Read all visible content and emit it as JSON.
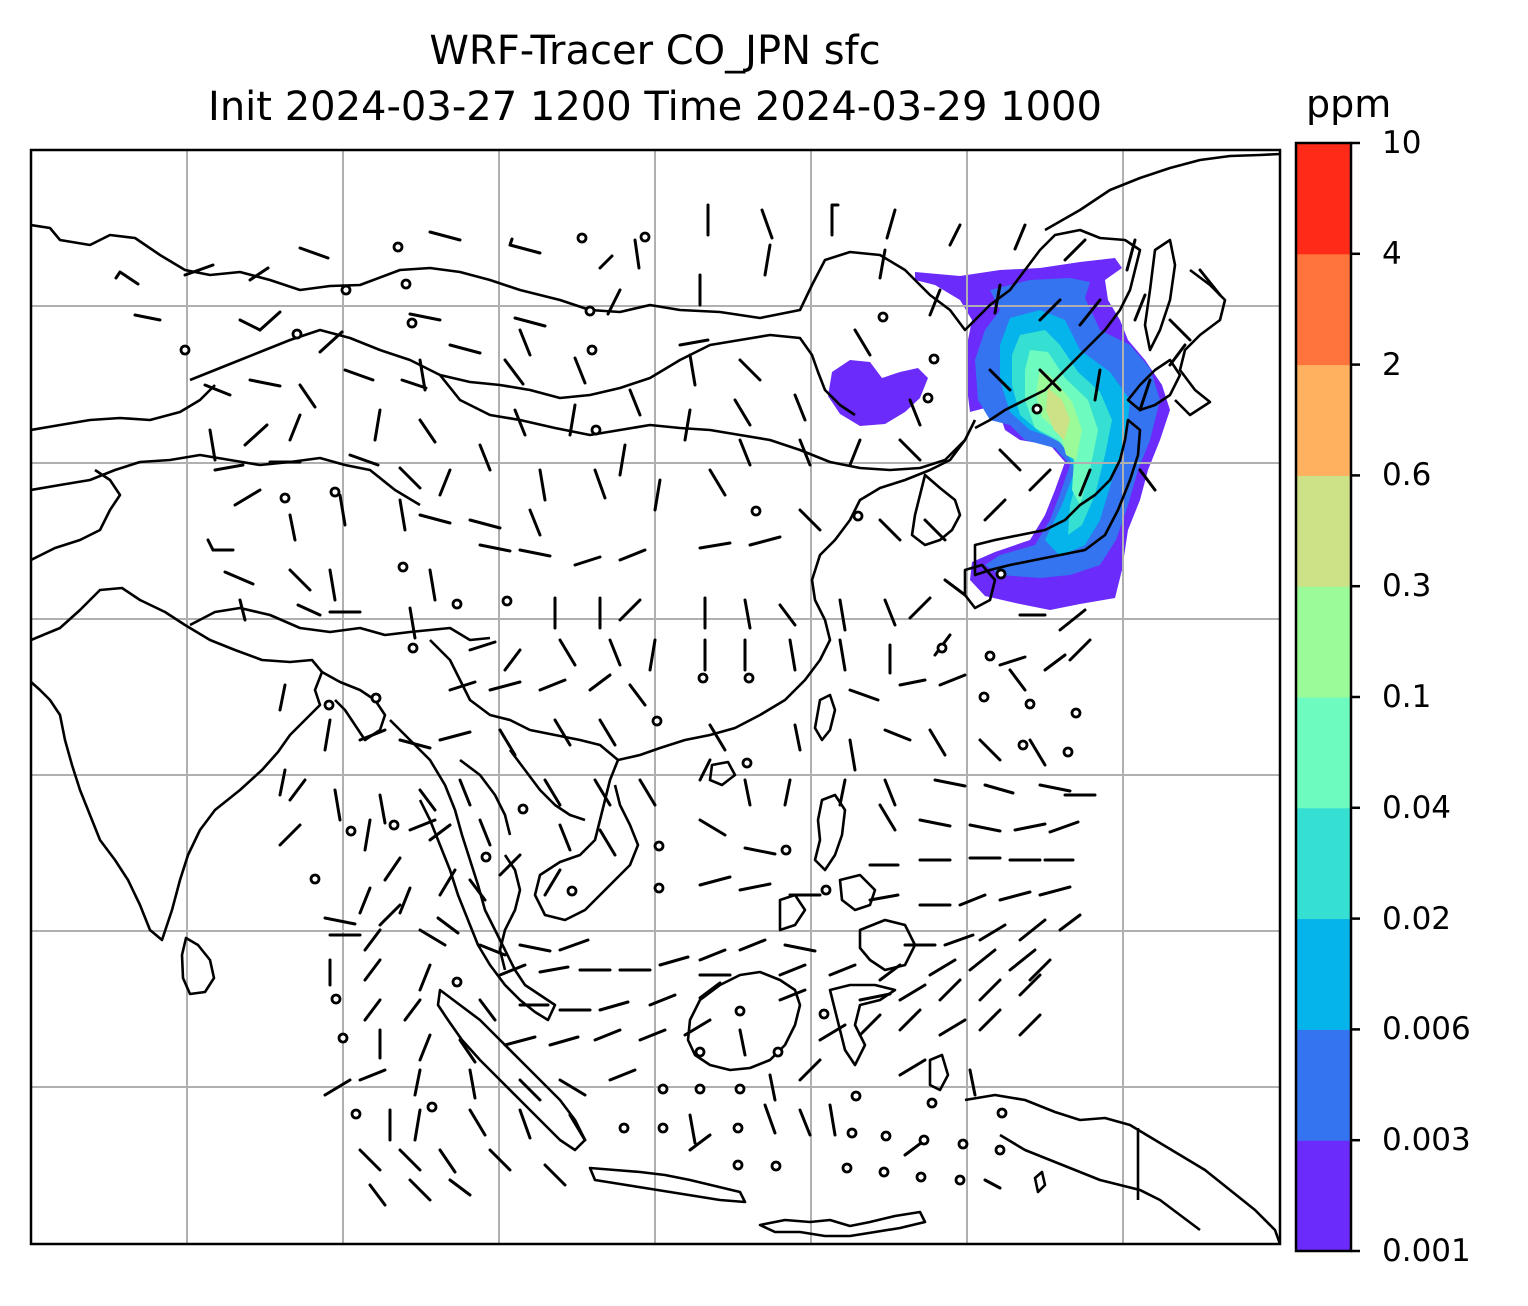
{
  "title": {
    "line1": "WRF-Tracer CO_JPN sfc",
    "line2": "Init 2024-03-27 1200 Time 2024-03-29 1000"
  },
  "colorbar": {
    "units": "ppm",
    "ticks": [
      "0.001",
      "0.003",
      "0.006",
      "0.02",
      "0.04",
      "0.1",
      "0.3",
      "0.6",
      "2",
      "4",
      "10"
    ],
    "colors": [
      "#6a2bfb",
      "#3474f0",
      "#05b4eb",
      "#35e0d3",
      "#6efbbf",
      "#9cfb99",
      "#cde187",
      "#ffb160",
      "#ff733c",
      "#ff2a18"
    ]
  },
  "map": {
    "frame_color": "#000000",
    "grid_color": "#b0b0b0",
    "coastline_color": "#000000",
    "barb_color": "#000000"
  }
}
